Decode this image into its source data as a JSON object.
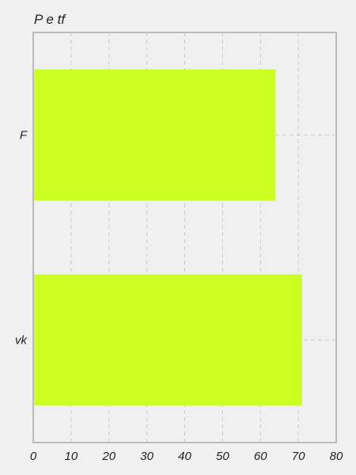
{
  "chart_data": {
    "type": "bar",
    "orientation": "horizontal",
    "title": "P e tf",
    "xlabel": "",
    "ylabel": "",
    "categories": [
      "F",
      "vk"
    ],
    "values": [
      64,
      71
    ],
    "xlim": [
      0,
      80
    ],
    "xticks": [
      "0",
      "10",
      "20",
      "30",
      "40",
      "50",
      "60",
      "70",
      "80"
    ],
    "grid": true,
    "legend": "none",
    "colors": {
      "bar": "#ccff22",
      "background": "#f0f0f0",
      "frame": "#bbbbbb",
      "grid": "#cccccc"
    }
  }
}
